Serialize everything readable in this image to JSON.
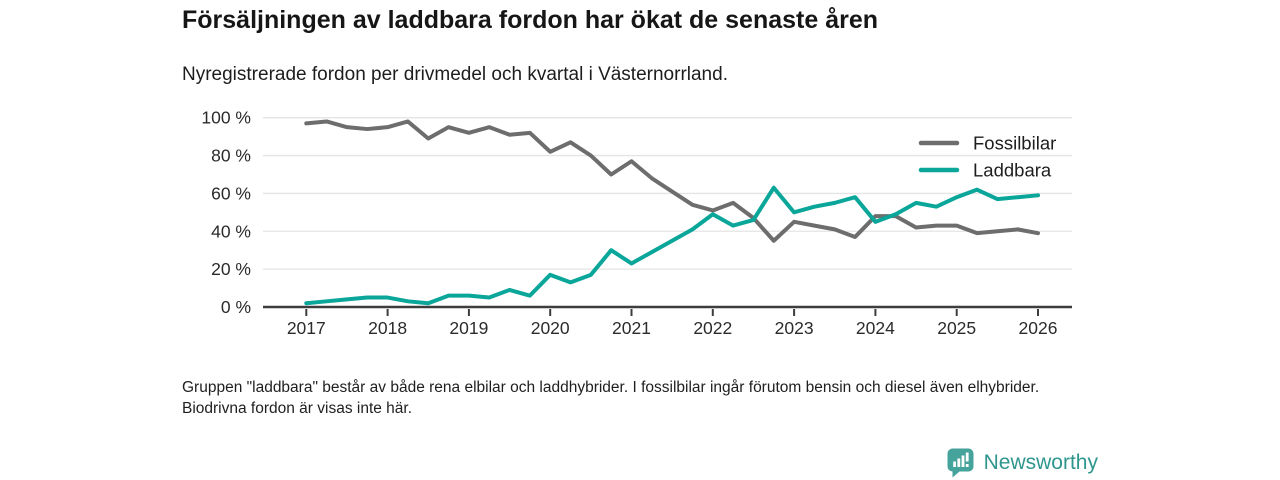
{
  "header": {
    "title": "Försäljningen av laddbara fordon har ökat de senaste åren",
    "subtitle": "Nyregistrerade fordon per drivmedel och kvartal i Västernorrland."
  },
  "chart_data": {
    "type": "line",
    "title": "Försäljningen av laddbara fordon har ökat de senaste åren",
    "subtitle": "Nyregistrerade fordon per drivmedel och kvartal i Västernorrland.",
    "x_unit": "quarter",
    "categories": [
      "2017Q1",
      "2017Q2",
      "2017Q3",
      "2017Q4",
      "2018Q1",
      "2018Q2",
      "2018Q3",
      "2018Q4",
      "2019Q1",
      "2019Q2",
      "2019Q3",
      "2019Q4",
      "2020Q1",
      "2020Q2",
      "2020Q3",
      "2020Q4",
      "2021Q1",
      "2021Q2",
      "2021Q3",
      "2021Q4",
      "2022Q1",
      "2022Q2",
      "2022Q3",
      "2022Q4",
      "2023Q1",
      "2023Q2",
      "2023Q3",
      "2023Q4",
      "2024Q1",
      "2024Q2",
      "2024Q3",
      "2024Q4",
      "2025Q1",
      "2025Q2",
      "2025Q3",
      "2025Q4",
      "2026Q1"
    ],
    "series": [
      {
        "name": "Fossilbilar",
        "color": "#6d6d6d",
        "values": [
          97,
          98,
          95,
          94,
          95,
          98,
          89,
          95,
          92,
          95,
          91,
          92,
          82,
          87,
          80,
          70,
          77,
          68,
          61,
          54,
          51,
          55,
          47,
          35,
          45,
          43,
          41,
          37,
          48,
          48,
          42,
          43,
          43,
          39,
          40,
          41,
          39
        ]
      },
      {
        "name": "Laddbara",
        "color": "#0ba69a",
        "values": [
          2,
          3,
          4,
          5,
          5,
          3,
          2,
          6,
          6,
          5,
          9,
          6,
          17,
          13,
          17,
          30,
          23,
          29,
          35,
          41,
          49,
          43,
          46,
          63,
          50,
          53,
          55,
          58,
          45,
          49,
          55,
          53,
          58,
          62,
          57,
          58,
          59
        ]
      }
    ],
    "x_tick_labels": [
      "2017",
      "2018",
      "2019",
      "2020",
      "2021",
      "2022",
      "2023",
      "2024",
      "2025",
      "2026"
    ],
    "y_tick_labels": [
      "0 %",
      "20 %",
      "40 %",
      "60 %",
      "80 %",
      "100 %"
    ],
    "ylim": [
      0,
      100
    ],
    "grid": true,
    "legend_position": "top-right"
  },
  "footnote": "Gruppen \"laddbara\" består av både rena elbilar och laddhybrider. I fossilbilar ingår förutom bensin och diesel även elhybrider. Biodrivna fordon är visas inte här.",
  "logo": {
    "text": "Newsworthy",
    "color": "#2f968e",
    "icon_color": "#46a39b"
  },
  "colors": {
    "grid": "#e4e4e4",
    "axis": "#3d3d3d",
    "tick_label": "#2b2b2b",
    "background": "#ffffff"
  }
}
